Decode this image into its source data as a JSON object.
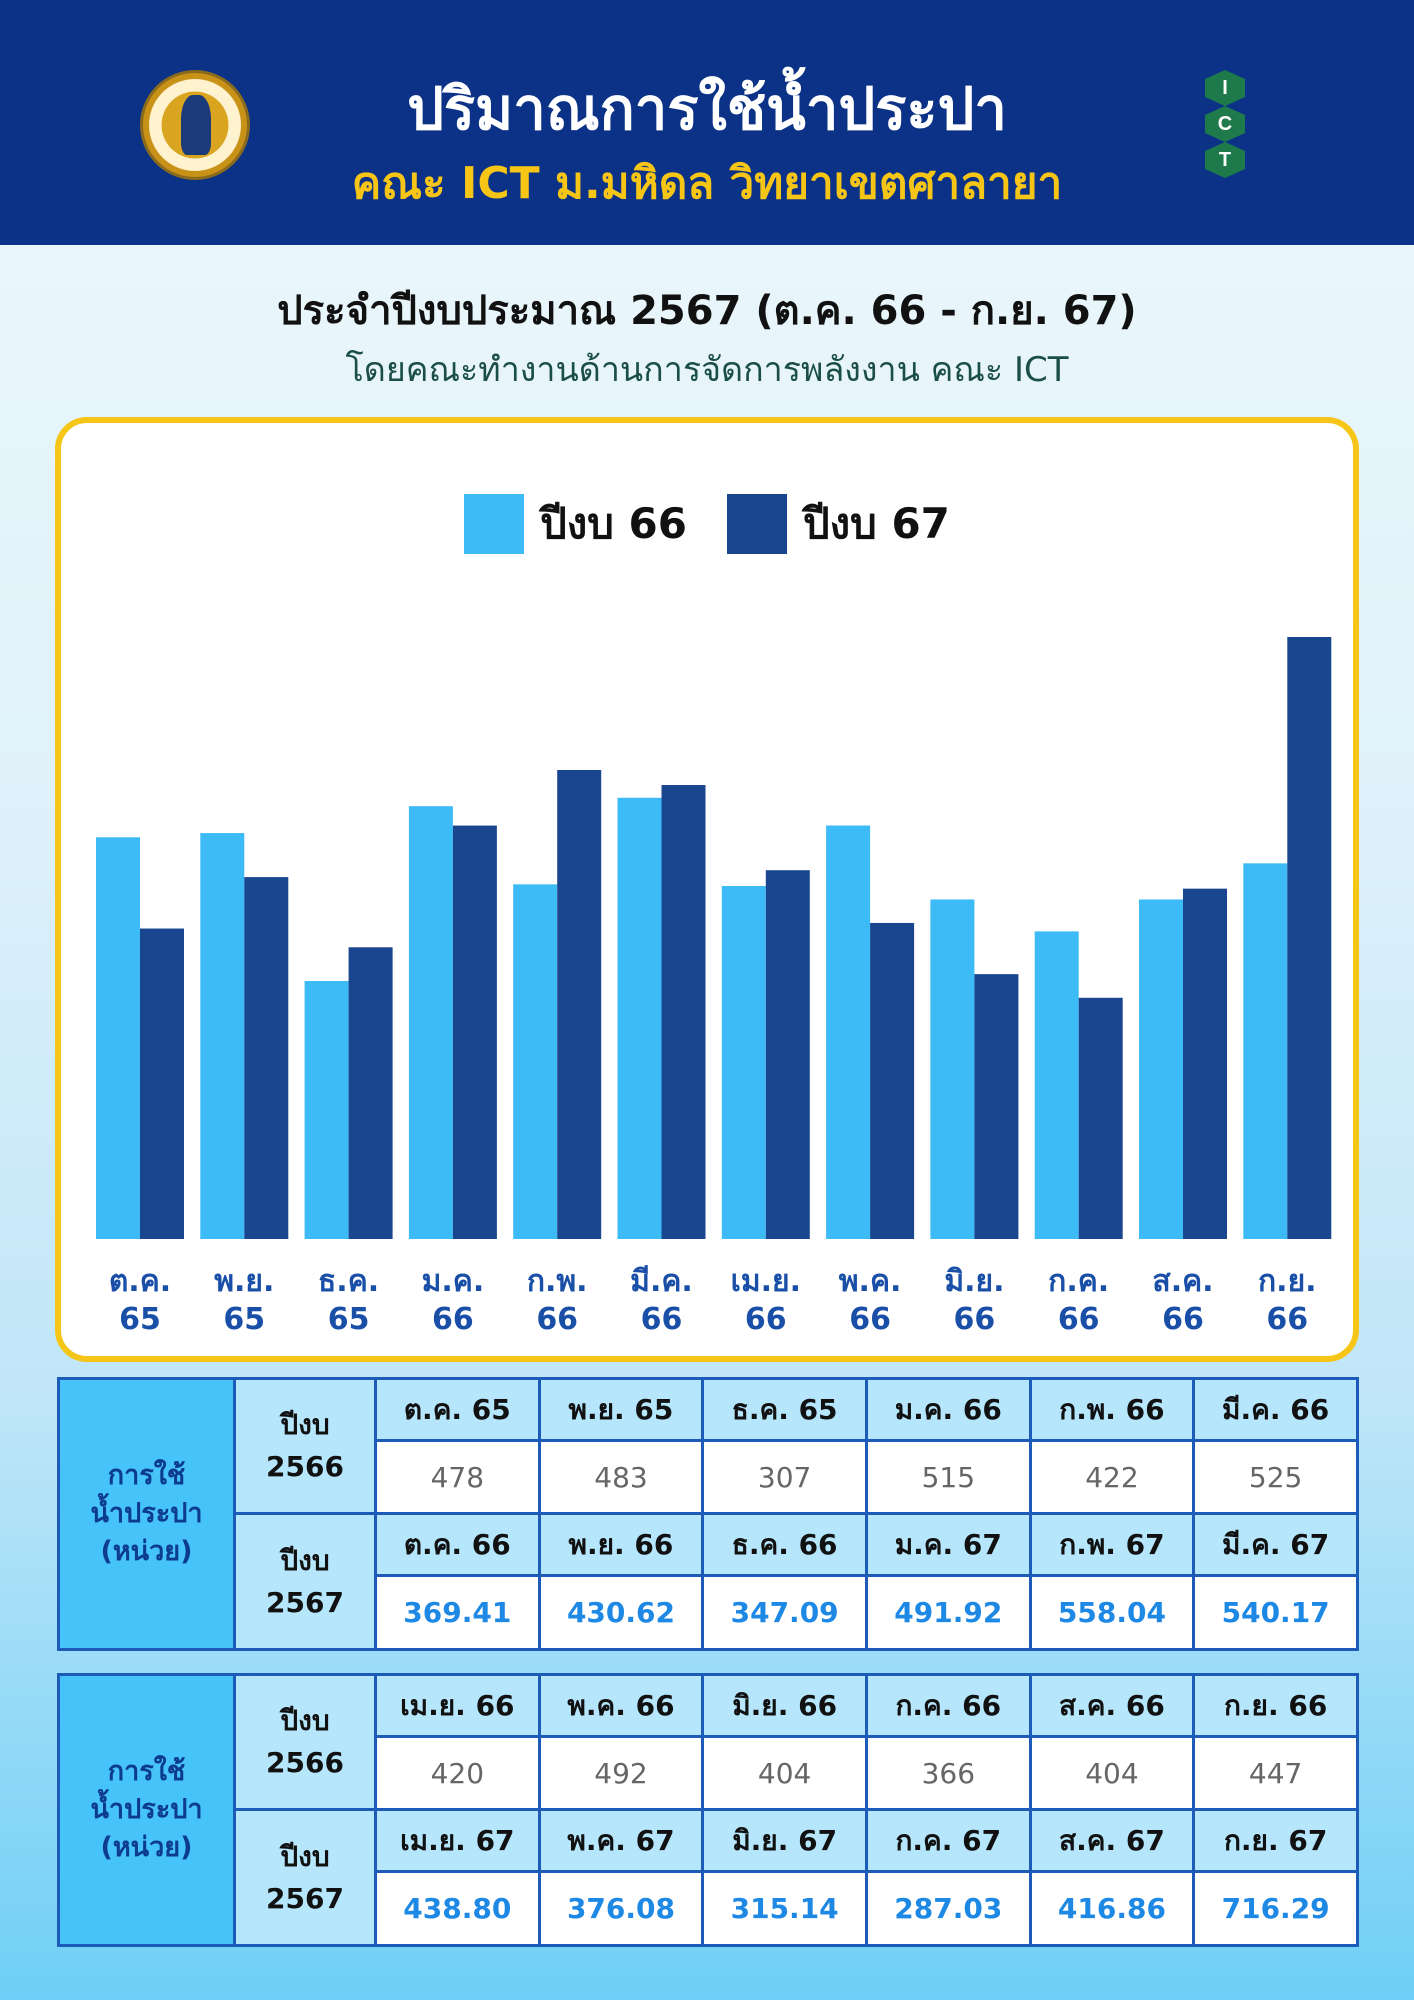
{
  "header": {
    "title": "ปริมาณการใช้น้ำประปา",
    "subtitle": "คณะ ICT ม.มหิดล วิทยาเขตศาลายา",
    "ict_logo": [
      "I",
      "C",
      "T"
    ]
  },
  "fiscal_title": "ประจำปีงบประมาณ 2567 (ต.ค. 66 - ก.ย. 67)",
  "by_line": "โดยคณะทำงานด้านการจัดการพลังงาน คณะ ICT",
  "colors": {
    "fy66": "#3dbbf7",
    "fy67": "#1a4690",
    "header_bg": "#0b3286",
    "accent": "#f5c518"
  },
  "chart_data": {
    "type": "bar",
    "categories": [
      [
        "ต.ค.",
        "65"
      ],
      [
        "พ.ย.",
        "65"
      ],
      [
        "ธ.ค.",
        "65"
      ],
      [
        "ม.ค.",
        "66"
      ],
      [
        "ก.พ.",
        "66"
      ],
      [
        "มี.ค.",
        "66"
      ],
      [
        "เม.ย.",
        "66"
      ],
      [
        "พ.ค.",
        "66"
      ],
      [
        "มิ.ย.",
        "66"
      ],
      [
        "ก.ค.",
        "66"
      ],
      [
        "ส.ค.",
        "66"
      ],
      [
        "ก.ย.",
        "66"
      ]
    ],
    "series": [
      {
        "name": "ปีงบ 66",
        "values": [
          478,
          483,
          307,
          515,
          422,
          525,
          420,
          492,
          404,
          366,
          404,
          447
        ]
      },
      {
        "name": "ปีงบ 67",
        "values": [
          369.41,
          430.62,
          347.09,
          491.92,
          558.04,
          540.17,
          438.8,
          376.08,
          315.14,
          287.03,
          416.86,
          716.29
        ]
      }
    ],
    "ylim": [
      0,
      716.29
    ],
    "grid": false,
    "legend": "top-center"
  },
  "tables": [
    {
      "label": [
        "การใช้",
        "น้ำประปา",
        "(หน่วย)"
      ],
      "y1": [
        "ปีงบ",
        "2566"
      ],
      "y2": [
        "ปีงบ",
        "2567"
      ],
      "months1": [
        "ต.ค. 65",
        "พ.ย. 65",
        "ธ.ค. 65",
        "ม.ค. 66",
        "ก.พ. 66",
        "มี.ค. 66"
      ],
      "values1": [
        "478",
        "483",
        "307",
        "515",
        "422",
        "525"
      ],
      "months2": [
        "ต.ค. 66",
        "พ.ย. 66",
        "ธ.ค. 66",
        "ม.ค. 67",
        "ก.พ. 67",
        "มี.ค. 67"
      ],
      "values2": [
        "369.41",
        "430.62",
        "347.09",
        "491.92",
        "558.04",
        "540.17"
      ]
    },
    {
      "label": [
        "การใช้",
        "น้ำประปา",
        "(หน่วย)"
      ],
      "y1": [
        "ปีงบ",
        "2566"
      ],
      "y2": [
        "ปีงบ",
        "2567"
      ],
      "months1": [
        "เม.ย. 66",
        "พ.ค. 66",
        "มิ.ย. 66",
        "ก.ค. 66",
        "ส.ค. 66",
        "ก.ย. 66"
      ],
      "values1": [
        "420",
        "492",
        "404",
        "366",
        "404",
        "447"
      ],
      "months2": [
        "เม.ย. 67",
        "พ.ค. 67",
        "มิ.ย. 67",
        "ก.ค. 67",
        "ส.ค. 67",
        "ก.ย. 67"
      ],
      "values2": [
        "438.80",
        "376.08",
        "315.14",
        "287.03",
        "416.86",
        "716.29"
      ]
    }
  ]
}
